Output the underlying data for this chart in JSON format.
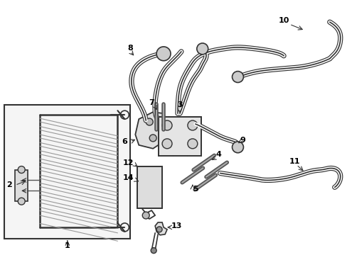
{
  "bg_color": "#ffffff",
  "line_color": "#333333",
  "label_color": "#000000",
  "figsize": [
    4.89,
    3.6
  ],
  "dpi": 100,
  "box_fill": "#ebebeb",
  "condenser_fill": "#f5f5f5"
}
